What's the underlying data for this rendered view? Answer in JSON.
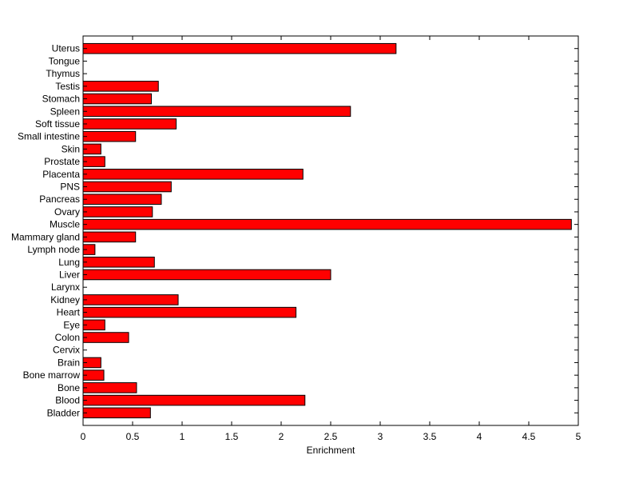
{
  "chart_data": {
    "type": "bar",
    "orientation": "horizontal",
    "title": "",
    "xlabel": "Enrichment",
    "ylabel": "",
    "xlim": [
      0,
      5
    ],
    "xticks": [
      0,
      0.5,
      1,
      1.5,
      2,
      2.5,
      3,
      3.5,
      4,
      4.5,
      5
    ],
    "xtick_labels": [
      "0",
      "0.5",
      "1",
      "1.5",
      "2",
      "2.5",
      "3",
      "3.5",
      "4",
      "4.5",
      "5"
    ],
    "grid": false,
    "bar_color": "#ff0000",
    "categories": [
      "Bladder",
      "Blood",
      "Bone",
      "Bone marrow",
      "Brain",
      "Cervix",
      "Colon",
      "Eye",
      "Heart",
      "Kidney",
      "Larynx",
      "Liver",
      "Lung",
      "Lymph node",
      "Mammary gland",
      "Muscle",
      "Ovary",
      "Pancreas",
      "PNS",
      "Placenta",
      "Prostate",
      "Skin",
      "Small intestine",
      "Soft tissue",
      "Spleen",
      "Stomach",
      "Testis",
      "Thymus",
      "Tongue",
      "Uterus"
    ],
    "values": [
      0.68,
      2.24,
      0.54,
      0.21,
      0.18,
      0,
      0.46,
      0.22,
      2.15,
      0.96,
      0,
      2.5,
      0.72,
      0.12,
      0.53,
      4.93,
      0.7,
      0.79,
      0.89,
      2.22,
      0.22,
      0.18,
      0.53,
      0.94,
      2.7,
      0.69,
      0.76,
      0,
      0,
      3.16
    ]
  }
}
